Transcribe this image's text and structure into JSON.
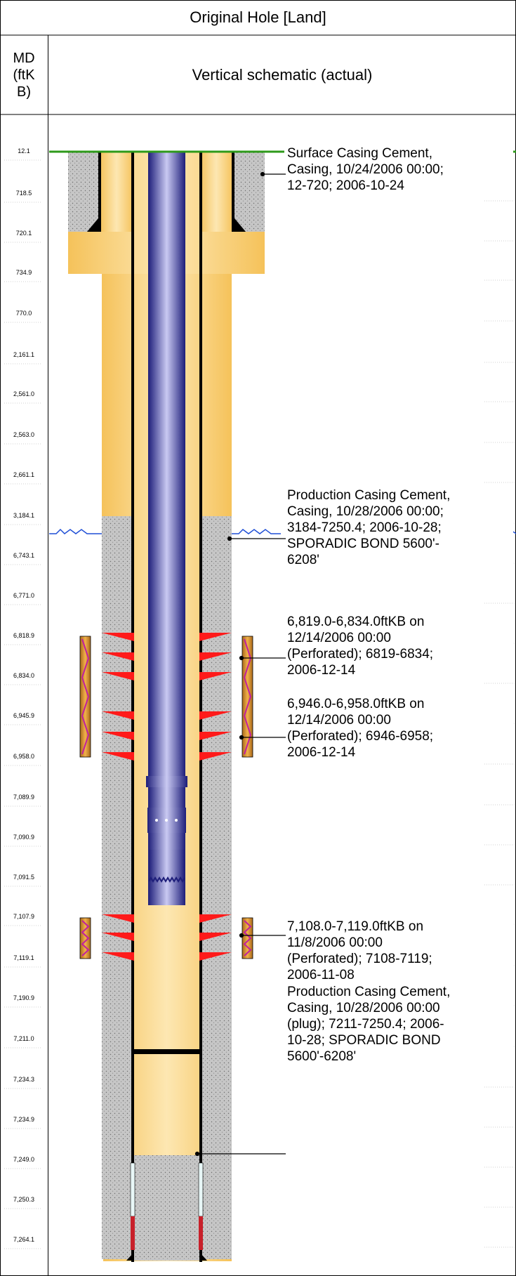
{
  "header": {
    "title": "Original Hole [Land]",
    "md_col": [
      "MD",
      "(ftK",
      "B)"
    ],
    "schematic_col": "Vertical schematic (actual)"
  },
  "md_labels": [
    {
      "text": "12.1"
    },
    {
      "text": "718.5"
    },
    {
      "text": "720.1"
    },
    {
      "text": "734.9"
    },
    {
      "text": "770.0"
    },
    {
      "text": "2,161.1"
    },
    {
      "text": "2,561.0"
    },
    {
      "text": "2,563.0"
    },
    {
      "text": "2,661.1"
    },
    {
      "text": "3,184.1"
    },
    {
      "text": "6,743.1"
    },
    {
      "text": "6,771.0"
    },
    {
      "text": "6,818.9"
    },
    {
      "text": "6,834.0"
    },
    {
      "text": "6,945.9"
    },
    {
      "text": "6,958.0"
    },
    {
      "text": "7,089.9"
    },
    {
      "text": "7,090.9"
    },
    {
      "text": "7,091.5"
    },
    {
      "text": "7,107.9"
    },
    {
      "text": "7,119.1"
    },
    {
      "text": "7,190.9"
    },
    {
      "text": "7,211.0"
    },
    {
      "text": "7,234.3"
    },
    {
      "text": "7,234.9"
    },
    {
      "text": "7,249.0"
    },
    {
      "text": "7,250.3"
    },
    {
      "text": "7,264.1"
    }
  ],
  "annotations": [
    {
      "lines": [
        "Surface Casing Cement,",
        "Casing, 10/24/2006 00:00;",
        "12-720; 2006-10-24"
      ]
    },
    {
      "lines": [
        "Production Casing Cement,",
        "Casing, 10/28/2006 00:00;",
        "3184-7250.4; 2006-10-28;",
        "SPORADIC BOND 5600'-",
        "6208'"
      ]
    },
    {
      "lines": [
        "6,819.0-6,834.0ftKB on",
        "12/14/2006 00:00",
        "(Perforated); 6819-6834;",
        "2006-12-14"
      ]
    },
    {
      "lines": [
        "6,946.0-6,958.0ftKB on",
        "12/14/2006 00:00",
        "(Perforated); 6946-6958;",
        "2006-12-14"
      ]
    },
    {
      "lines": [
        "7,108.0-7,119.0ftKB on",
        "11/8/2006 00:00",
        "(Perforated); 7108-7119;",
        "2006-11-08"
      ]
    },
    {
      "lines": [
        "Production Casing Cement,",
        "Casing, 10/28/2006 00:00",
        "(plug); 7211-7250.4; 2006-",
        "10-28; SPORADIC BOND",
        "5600'-6208'"
      ]
    }
  ],
  "colors": {
    "hole": "#f9cd73",
    "cement": "#c8c8c8",
    "casing": "#000000",
    "tubing": "#3a3aa8",
    "perf": "#ff1a1a",
    "perf_gun": "#d59a2e",
    "grass": "#2e9a1a",
    "water_line": "#1f4fd6"
  }
}
